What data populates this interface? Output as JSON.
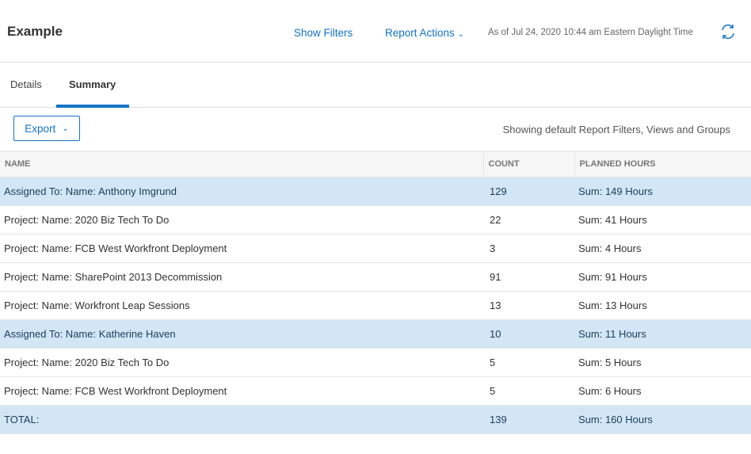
{
  "header": {
    "title": "Example",
    "show_filters": "Show Filters",
    "report_actions": "Report Actions",
    "as_of": "As of Jul 24, 2020 10:44 am Eastern Daylight Time"
  },
  "tabs": [
    {
      "label": "Details",
      "active": false
    },
    {
      "label": "Summary",
      "active": true
    }
  ],
  "toolbar": {
    "export": "Export",
    "info": "Showing default Report Filters, Views and Groups"
  },
  "table": {
    "columns": [
      "NAME",
      "COUNT",
      "PLANNED HOURS"
    ],
    "rows": [
      {
        "name": "Assigned To: Name: Anthony Imgrund",
        "count": "129",
        "hours": "Sum: 149 Hours",
        "group": true
      },
      {
        "name": "Project: Name: 2020 Biz Tech To Do",
        "count": "22",
        "hours": "Sum: 41 Hours",
        "group": false
      },
      {
        "name": "Project: Name: FCB West Workfront Deployment",
        "count": "3",
        "hours": "Sum: 4 Hours",
        "group": false
      },
      {
        "name": "Project: Name: SharePoint 2013 Decommission",
        "count": "91",
        "hours": "Sum: 91 Hours",
        "group": false
      },
      {
        "name": "Project: Name: Workfront Leap Sessions",
        "count": "13",
        "hours": "Sum: 13 Hours",
        "group": false
      },
      {
        "name": "Assigned To: Name: Katherine Haven",
        "count": "10",
        "hours": "Sum: 11 Hours",
        "group": true
      },
      {
        "name": "Project: Name: 2020 Biz Tech To Do",
        "count": "5",
        "hours": "Sum: 5 Hours",
        "group": false
      },
      {
        "name": "Project: Name: FCB West Workfront Deployment",
        "count": "5",
        "hours": "Sum: 6 Hours",
        "group": false
      },
      {
        "name": "TOTAL:",
        "count": "139",
        "hours": "Sum: 160 Hours",
        "group": true
      }
    ]
  },
  "colors": {
    "accent": "#1273c7",
    "group_row": "#d2e6f5"
  }
}
